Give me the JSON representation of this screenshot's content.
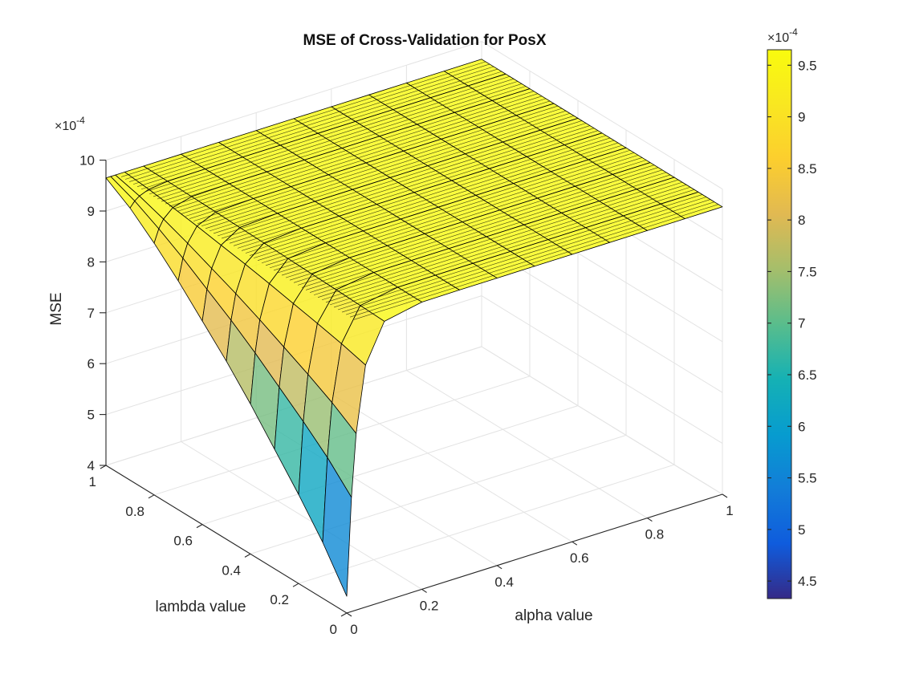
{
  "chart_data": {
    "type": "surface",
    "title": "MSE of Cross-Validation for PosX",
    "xlabel": "alpha value",
    "ylabel": "lambda value",
    "zlabel": "MSE",
    "z_exponent_label": "×10",
    "z_exponent": "-4",
    "x_ticks": [
      "0",
      "0.2",
      "0.4",
      "0.6",
      "0.8",
      "1"
    ],
    "y_ticks": [
      "0",
      "0.2",
      "0.4",
      "0.6",
      "0.8",
      "1"
    ],
    "z_ticks": [
      "4",
      "5",
      "6",
      "7",
      "8",
      "9",
      "10"
    ],
    "xlim": [
      0,
      1
    ],
    "ylim": [
      0,
      1
    ],
    "zlim": [
      4,
      10
    ],
    "grid": true,
    "colormap": "parula",
    "colorbar": {
      "exponent_label": "×10",
      "exponent": "-4",
      "ticks": [
        "4.5",
        "5",
        "5.5",
        "6",
        "6.5",
        "7",
        "7.5",
        "8",
        "8.5",
        "9",
        "9.5"
      ],
      "range": [
        4.33,
        9.65
      ]
    },
    "lambda_values": [
      0.0,
      0.1,
      0.2,
      0.3,
      0.4,
      0.5,
      0.6,
      0.7,
      0.8,
      0.9,
      1.0
    ],
    "alpha_values": [
      0.0,
      0.0125,
      0.025,
      0.05,
      0.1,
      0.2,
      0.3,
      0.4,
      0.5,
      0.6,
      0.7,
      0.8,
      0.9,
      1.0
    ],
    "mse_at_alpha_zero_by_lambda": [
      4.33,
      5.1,
      5.75,
      6.35,
      6.95,
      7.5,
      8.0,
      8.5,
      8.95,
      9.35,
      9.65
    ],
    "mse_plateau": 9.65
  }
}
